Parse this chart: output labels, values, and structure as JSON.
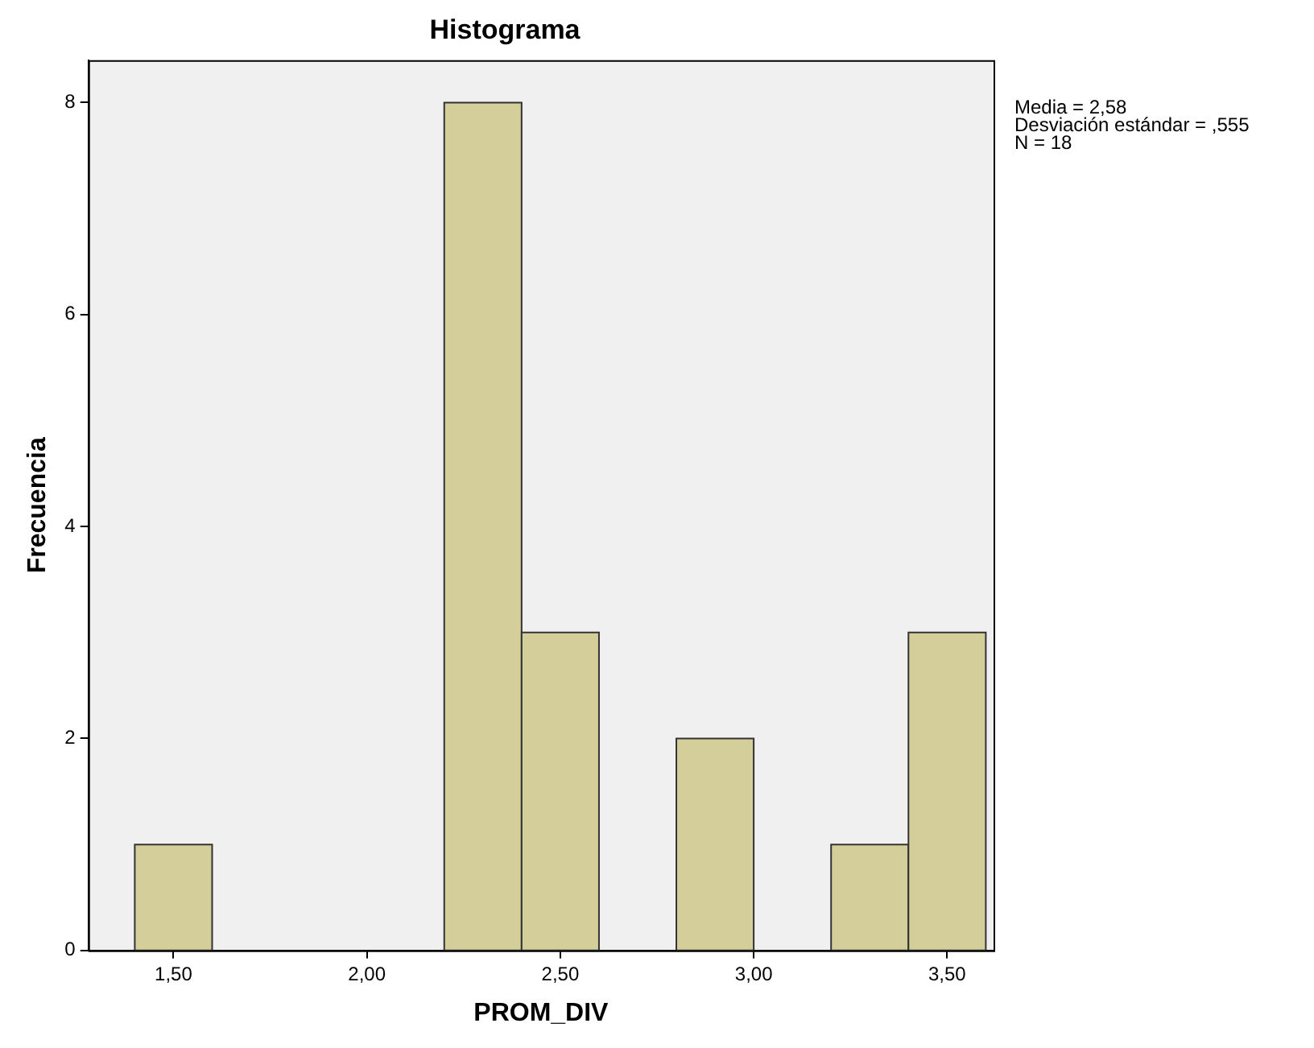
{
  "chart_data": {
    "type": "histogram",
    "title": "Histograma",
    "xlabel": "PROM_DIV",
    "ylabel": "Frecuencia",
    "bins": [
      1.4,
      1.6,
      2.2,
      2.4,
      2.6,
      2.8,
      3.0,
      3.2,
      3.4,
      3.6
    ],
    "values": [
      1,
      0,
      8,
      3,
      0,
      2,
      0,
      1,
      3
    ],
    "color": "#d4cf9a",
    "xlim": [
      1.28,
      3.62
    ],
    "xticks": [
      {
        "value": 1.5,
        "label": "1,50"
      },
      {
        "value": 2.0,
        "label": "2,00"
      },
      {
        "value": 2.5,
        "label": "2,50"
      },
      {
        "value": 3.0,
        "label": "3,00"
      },
      {
        "value": 3.5,
        "label": "3,50"
      }
    ],
    "ylim": [
      0,
      8.4
    ],
    "yticks": [
      0,
      2,
      4,
      6,
      8
    ],
    "annotations": [
      "Media = 2,58",
      "Desviación estándar = ,555",
      "N = 18"
    ]
  }
}
